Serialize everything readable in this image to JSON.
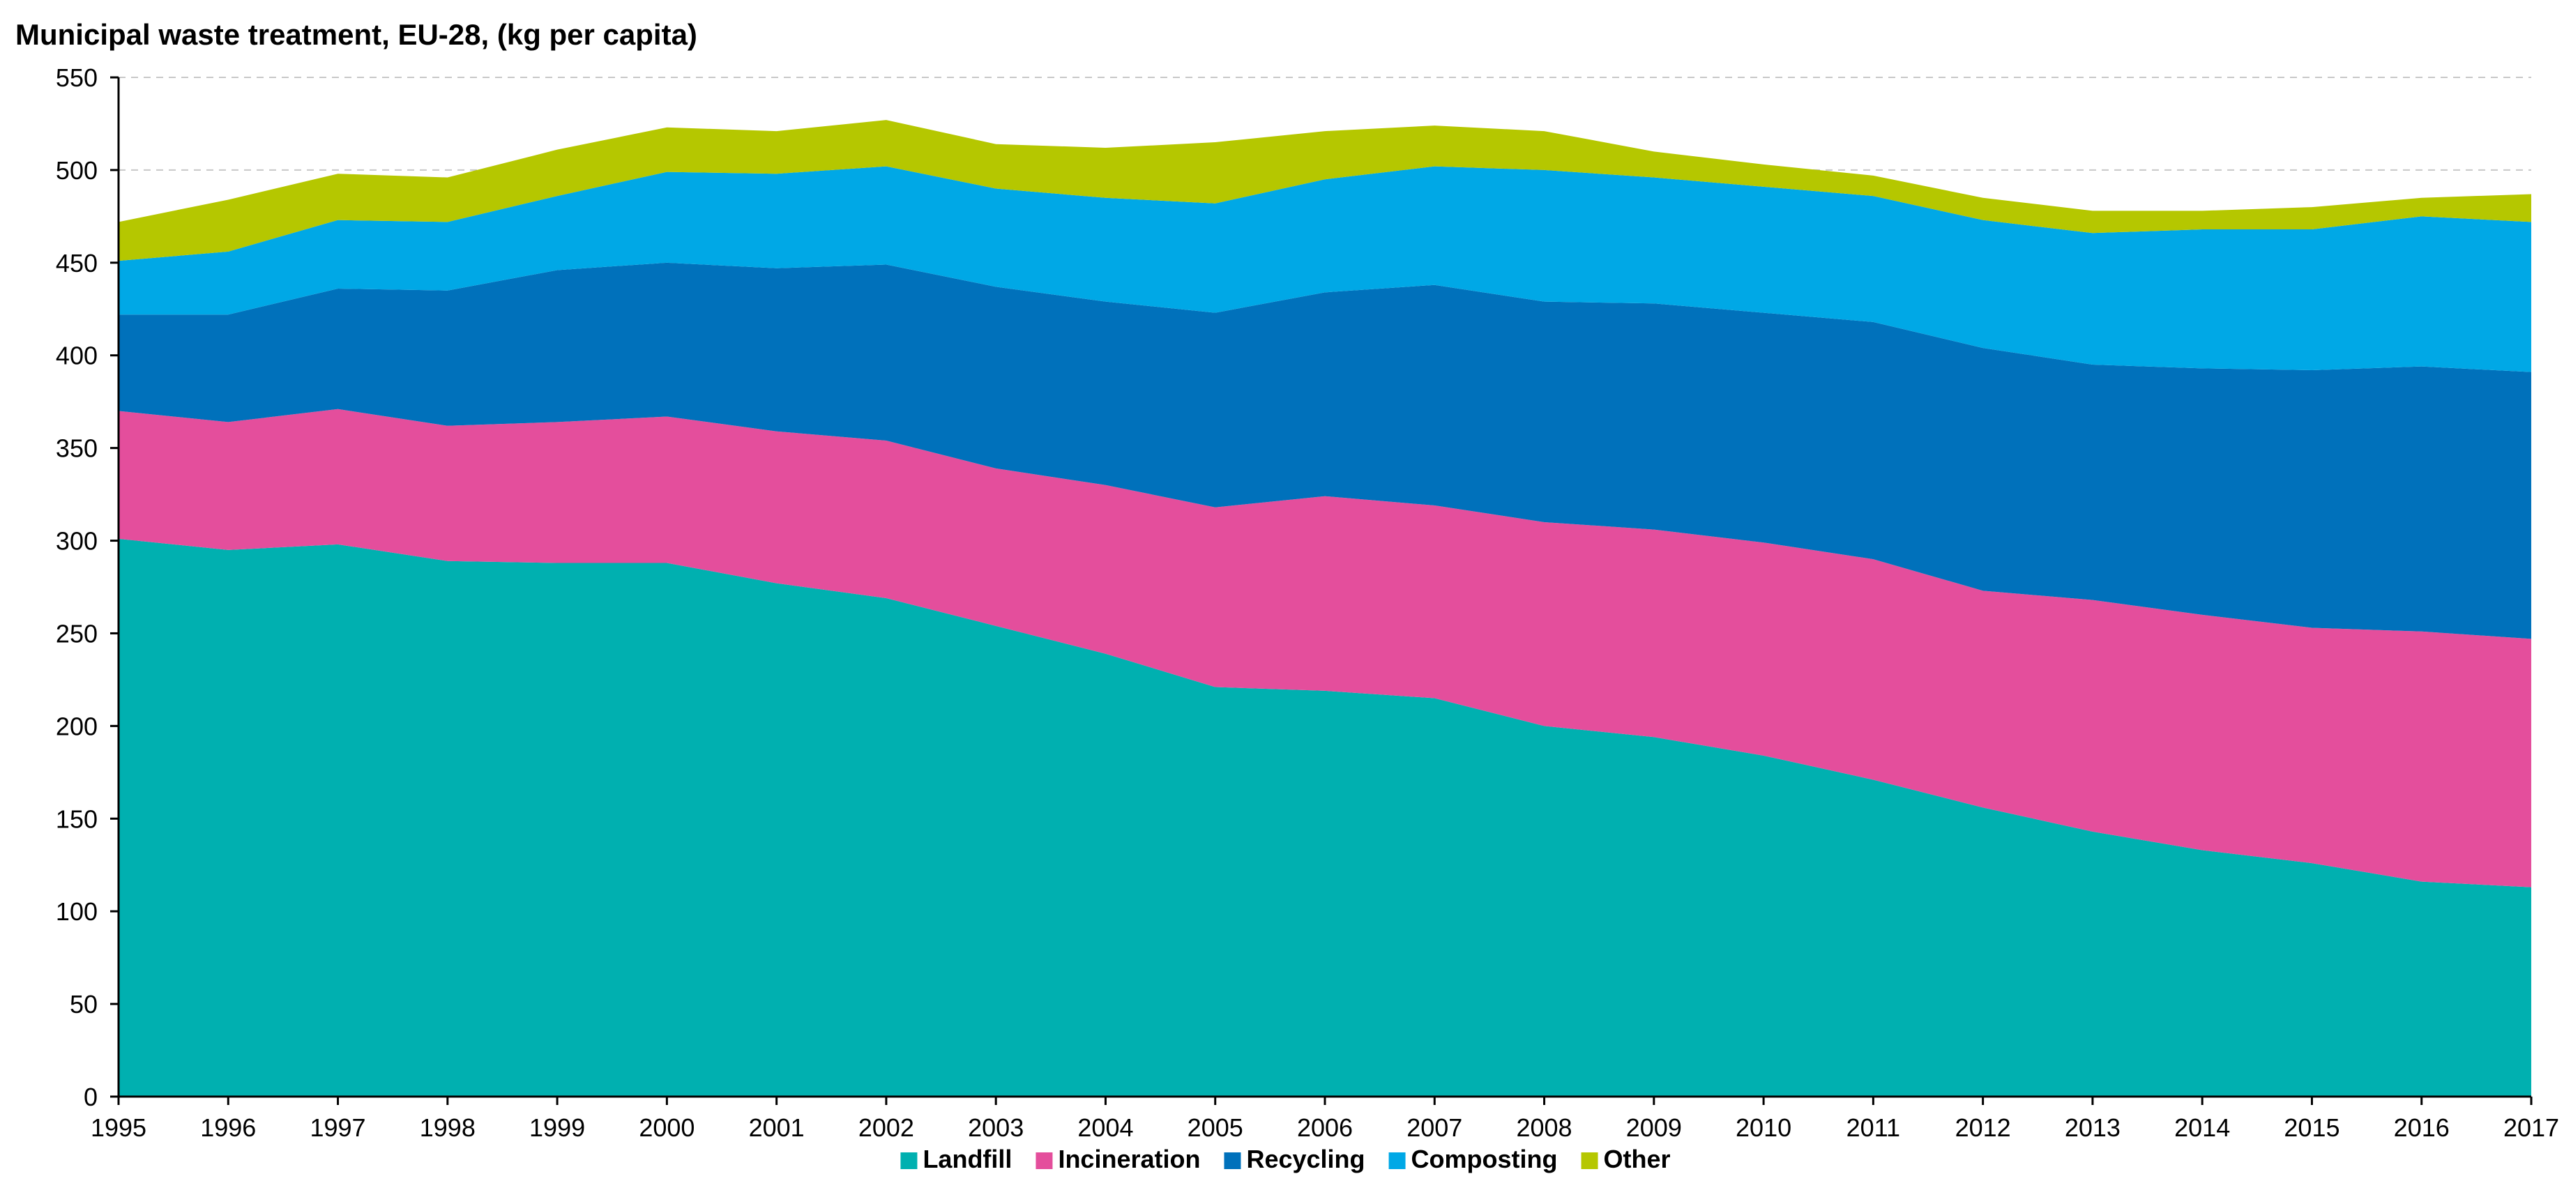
{
  "chart_data": {
    "type": "area",
    "stacked": true,
    "title": "Municipal waste treatment, EU-28, (kg per capita)",
    "xlabel": "",
    "ylabel": "",
    "ylim": [
      0,
      550
    ],
    "yticks": [
      0,
      50,
      100,
      150,
      200,
      250,
      300,
      350,
      400,
      450,
      500,
      550
    ],
    "grid": true,
    "legend_position": "bottom",
    "x": [
      "1995",
      "1996",
      "1997",
      "1998",
      "1999",
      "2000",
      "2001",
      "2002",
      "2003",
      "2004",
      "2005",
      "2006",
      "2007",
      "2008",
      "2009",
      "2010",
      "2011",
      "2012",
      "2013",
      "2014",
      "2015",
      "2016",
      "2017"
    ],
    "series": [
      {
        "name": "Landfill",
        "color": "#00b0b0",
        "values": [
          301,
          295,
          298,
          289,
          288,
          288,
          277,
          269,
          254,
          239,
          221,
          219,
          215,
          200,
          194,
          184,
          171,
          156,
          143,
          133,
          126,
          116,
          113
        ]
      },
      {
        "name": "Incineration",
        "color": "#e44e9c",
        "values": [
          69,
          69,
          73,
          73,
          76,
          79,
          82,
          85,
          85,
          91,
          97,
          105,
          104,
          110,
          112,
          115,
          119,
          117,
          125,
          127,
          127,
          135,
          134
        ]
      },
      {
        "name": "Recycling",
        "color": "#0071bb",
        "values": [
          52,
          58,
          65,
          73,
          82,
          83,
          88,
          95,
          98,
          99,
          105,
          110,
          119,
          119,
          122,
          124,
          128,
          131,
          127,
          133,
          139,
          143,
          144
        ]
      },
      {
        "name": "Composting",
        "color": "#00a8e6",
        "values": [
          29,
          34,
          37,
          37,
          40,
          49,
          51,
          53,
          53,
          56,
          59,
          61,
          64,
          71,
          68,
          68,
          68,
          69,
          71,
          75,
          76,
          81,
          81
        ]
      },
      {
        "name": "Other",
        "color": "#b5c700",
        "values": [
          21,
          28,
          25,
          24,
          25,
          24,
          23,
          25,
          24,
          27,
          33,
          26,
          22,
          21,
          14,
          12,
          11,
          12,
          12,
          10,
          12,
          10,
          15
        ]
      }
    ]
  }
}
